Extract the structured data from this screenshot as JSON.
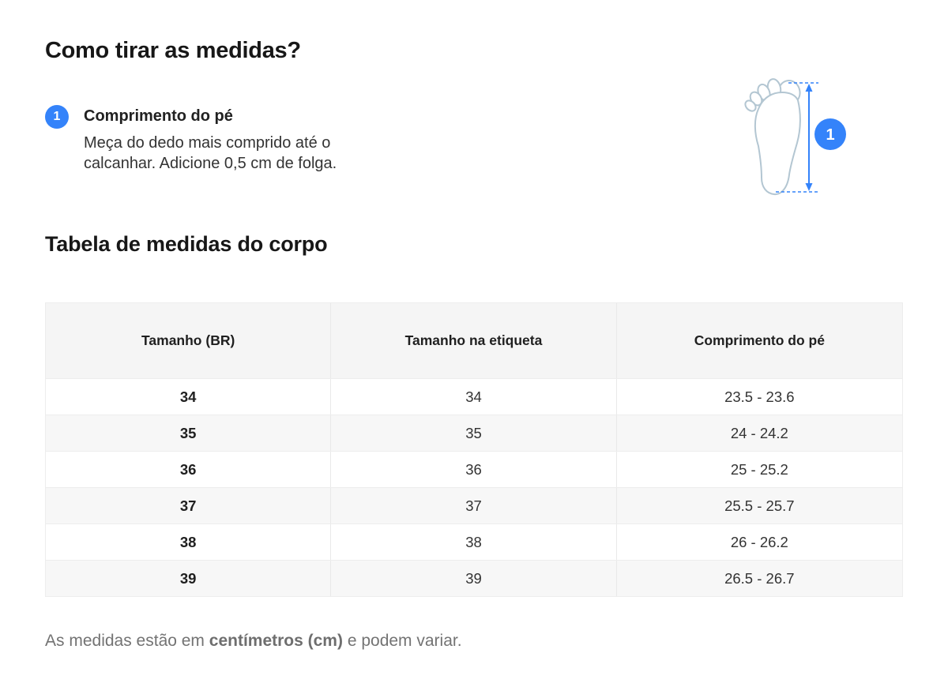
{
  "page": {
    "title": "Como tirar as medidas?",
    "section_title": "Tabela de medidas do corpo",
    "footnote": {
      "prefix": "As medidas estão em ",
      "bold": "centímetros (cm)",
      "suffix": " e podem variar."
    }
  },
  "steps": [
    {
      "number": "1",
      "title": "Comprimento do pé",
      "description": "Meça do dedo mais comprido até o calcanhar. Adicione 0,5 cm de folga."
    }
  ],
  "diagram": {
    "marker": "1",
    "meaning": "foot length measured from longest toe to heel"
  },
  "table": {
    "headers": [
      "Tamanho (BR)",
      "Tamanho na etiqueta",
      "Comprimento do pé"
    ],
    "rows": [
      [
        "34",
        "34",
        "23.5 - 23.6"
      ],
      [
        "35",
        "35",
        "24 - 24.2"
      ],
      [
        "36",
        "36",
        "25 - 25.2"
      ],
      [
        "37",
        "37",
        "25.5 - 25.7"
      ],
      [
        "38",
        "38",
        "26 - 26.2"
      ],
      [
        "39",
        "39",
        "26.5 - 26.7"
      ]
    ]
  },
  "colors": {
    "accent_blue": "#3483fa",
    "table_header_bg": "#f5f5f5",
    "table_alt_row_bg": "#f7f7f7",
    "footnote_text": "#737373",
    "foot_outline": "#b3c6d2"
  }
}
